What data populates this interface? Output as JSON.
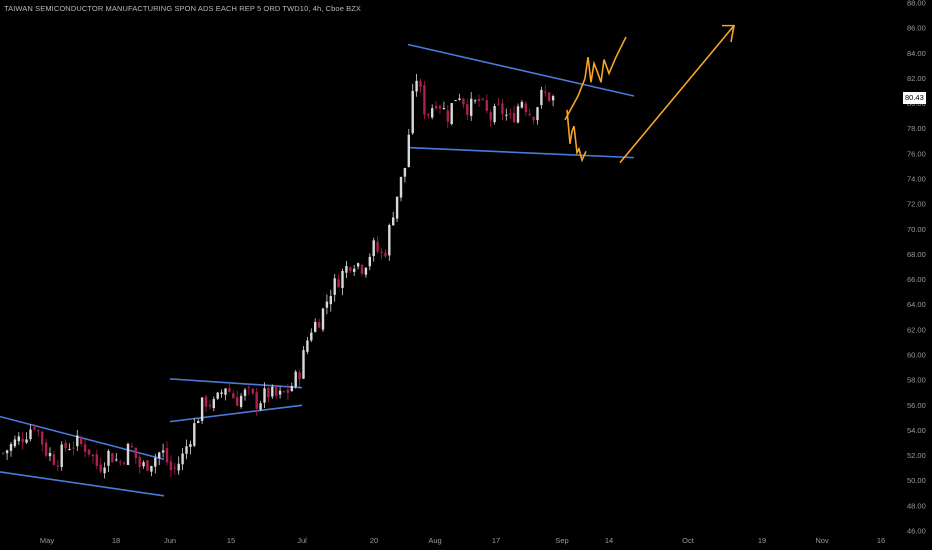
{
  "title": "TAIWAN SEMICONDUCTOR MANUFACTURING SPON ADS EACH REP 5 ORD TWD10, 4h, Cboe BZX",
  "last_price_label": "80.43",
  "colors": {
    "background": "#000000",
    "up_candle": "#d9d9d9",
    "down_candle": "#b0204a",
    "trendline": "#4a7bdc",
    "projection": "#f5a623"
  },
  "chart_data": {
    "type": "candlestick",
    "title": "TAIWAN SEMICONDUCTOR MANUFACTURING SPON ADS EACH REP 5 ORD TWD10, 4h, Cboe BZX",
    "ylim": [
      46,
      88
    ],
    "y_ticks": [
      "46.00",
      "48.00",
      "50.00",
      "52.00",
      "54.00",
      "56.00",
      "58.00",
      "60.00",
      "62.00",
      "64.00",
      "66.00",
      "68.00",
      "70.00",
      "72.00",
      "74.00",
      "76.00",
      "78.00",
      "80.00",
      "82.00",
      "84.00",
      "86.00",
      "88.00"
    ],
    "x_ticks": [
      "May",
      "18",
      "Jun",
      "15",
      "Jul",
      "20",
      "Aug",
      "17",
      "Sep",
      "14",
      "Oct",
      "19",
      "Nov",
      "16"
    ],
    "last_price": 80.43,
    "close_path": [
      [
        "May",
        52.2
      ],
      [
        "May",
        53.0
      ],
      [
        "May",
        53.6
      ],
      [
        "May",
        54.6
      ],
      [
        "May",
        52.4
      ],
      [
        "May",
        51.6
      ],
      [
        "May",
        52.8
      ],
      [
        "May",
        53.0
      ],
      [
        "May",
        52.6
      ],
      [
        "May",
        51.0
      ],
      [
        "18",
        52.2
      ],
      [
        "18",
        51.4
      ],
      [
        "18",
        52.8
      ],
      [
        "18",
        51.0
      ],
      [
        "18",
        51.6
      ],
      [
        "18",
        52.4
      ],
      [
        "Jun",
        50.6
      ],
      [
        "Jun",
        52.0
      ],
      [
        "Jun",
        54.2
      ],
      [
        "Jun",
        56.4
      ],
      [
        "Jun",
        56.0
      ],
      [
        "Jun",
        57.6
      ],
      [
        "15",
        56.4
      ],
      [
        "15",
        57.0
      ],
      [
        "15",
        56.2
      ],
      [
        "15",
        57.0
      ],
      [
        "Jul",
        56.6
      ],
      [
        "Jul",
        57.2
      ],
      [
        "Jul",
        58.6
      ],
      [
        "Jul",
        62.0
      ],
      [
        "Jul",
        63.0
      ],
      [
        "Jul",
        65.2
      ],
      [
        "Jul",
        66.4
      ],
      [
        "Jul",
        67.6
      ],
      [
        "20",
        67.0
      ],
      [
        "20",
        68.6
      ],
      [
        "20",
        67.8
      ],
      [
        "20",
        72.0
      ],
      [
        "20",
        75.0
      ],
      [
        "20",
        82.4
      ],
      [
        "20",
        79.0
      ],
      [
        "Aug",
        80.4
      ],
      [
        "Aug",
        79.0
      ],
      [
        "Aug",
        81.0
      ],
      [
        "Aug",
        79.6
      ],
      [
        "Aug",
        80.2
      ],
      [
        "Aug",
        78.8
      ],
      [
        "17",
        79.6
      ],
      [
        "17",
        78.6
      ],
      [
        "17",
        80.4
      ],
      [
        "17",
        79.0
      ],
      [
        "17",
        80.8
      ],
      [
        "Sep",
        80.4
      ]
    ],
    "trendlines": [
      {
        "x1": "May",
        "y1": 50.7,
        "x2": "18+",
        "y2": 48.8
      },
      {
        "x1": "May",
        "y1": 55.1,
        "x2": "18+",
        "y2": 51.7
      },
      {
        "x1": "Jun",
        "y1": 54.7,
        "x2": "Jul",
        "y2": 56.0
      },
      {
        "x1": "Jun",
        "y1": 58.1,
        "x2": "Jul",
        "y2": 57.4
      },
      {
        "x1": "Aug",
        "y1": 84.7,
        "x2": "Sep+",
        "y2": 80.6
      },
      {
        "x1": "Aug",
        "y1": 76.5,
        "x2": "Sep+",
        "y2": 75.7
      }
    ]
  }
}
